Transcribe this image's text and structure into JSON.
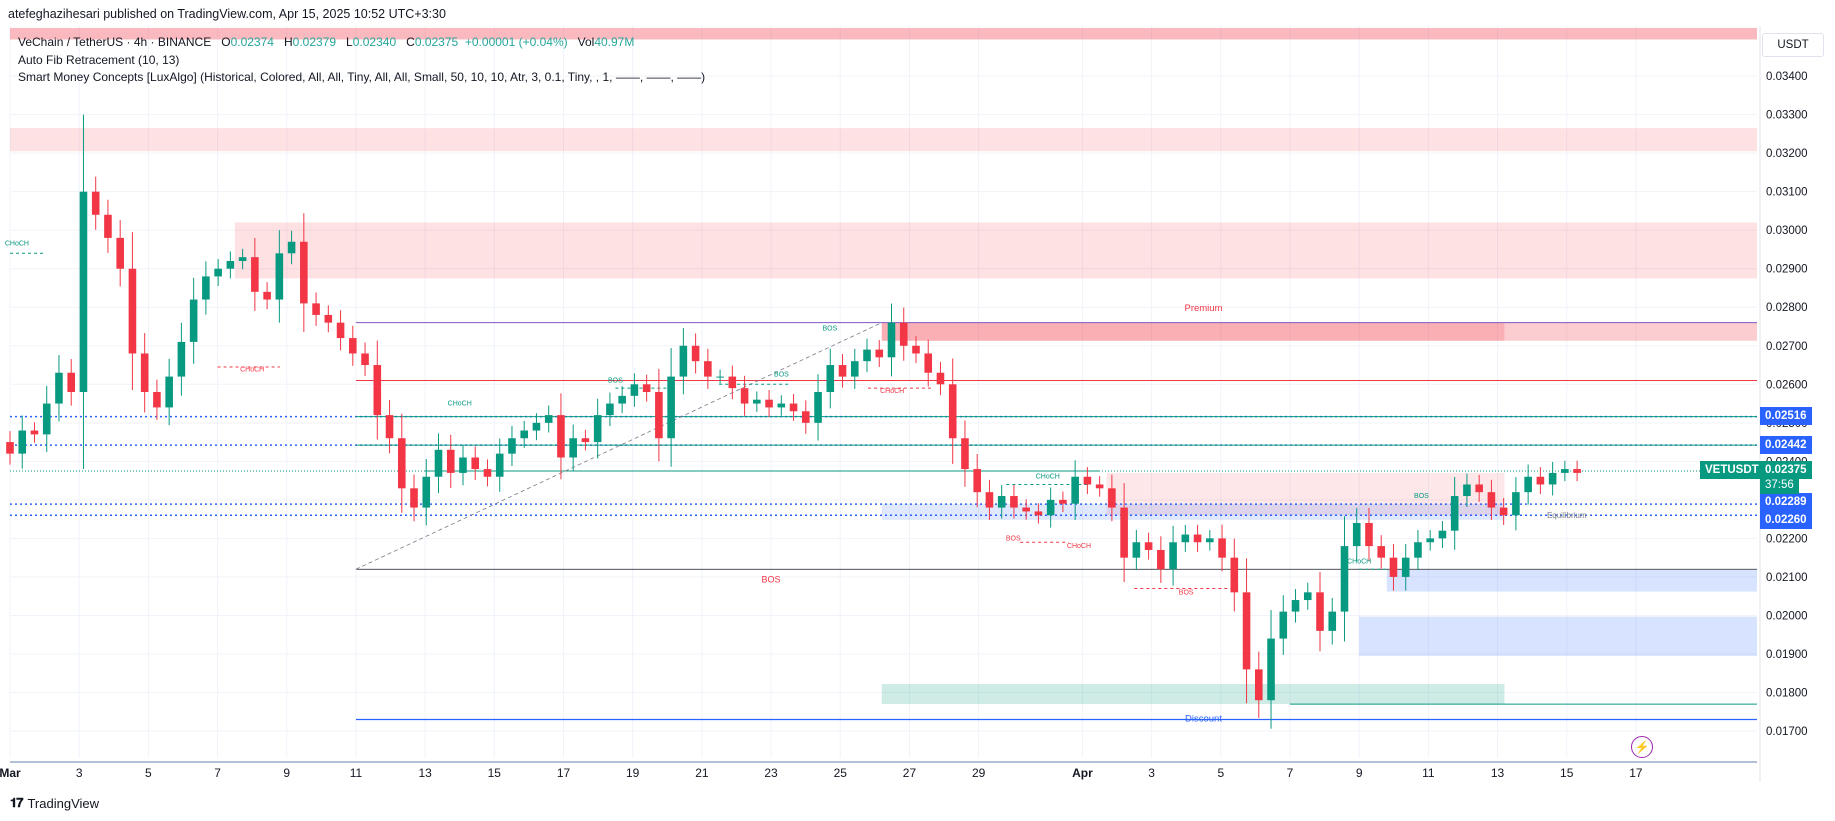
{
  "header": {
    "publisher": "atefeghazihesari published on TradingView.com, Apr 15, 2025 10:52 UTC+3:30"
  },
  "legend": {
    "pair": "VeChain / TetherUS · 4h · BINANCE",
    "o_label": "O",
    "o_value": "0.02374",
    "h_label": "H",
    "h_value": "0.02379",
    "l_label": "L",
    "l_value": "0.02340",
    "c_label": "C",
    "c_value": "0.02375",
    "change": "+0.00001 (+0.04%)",
    "vol_label": "Vol",
    "vol_value": "40.97M",
    "indicator_1": "Auto Fib Retracement (10, 13)",
    "indicator_2": "Smart Money Concepts [LuxAlgo] (Historical, Colored, All, All, Tiny, All, All, Small, 50, 10, 10, Atr, 3, 0.1, Tiny, , 1, ——, ——, ——)"
  },
  "price_axis": {
    "currency": "USDT",
    "symbol": "VETUSDT",
    "last_price": "0.02375",
    "countdown": "37:56",
    "levels": [
      "0.02516",
      "0.02442",
      "0.02289",
      "0.02260"
    ],
    "colors": {
      "up": "#089981",
      "down": "#f23645",
      "blue": "#2962ff",
      "premium": "#f23645"
    }
  },
  "annotations": {
    "premium": "Premium",
    "discount": "Discount",
    "equilibrium": "Equilibrium",
    "bos": "BOS",
    "choch": "CHoCH"
  },
  "footer": {
    "brand": "TradingView"
  },
  "chart_data": {
    "type": "candlestick",
    "title": "VeChain / TetherUS · 4h · BINANCE",
    "ylim": [
      0.0163,
      0.0353
    ],
    "y_ticks": [
      "0.03400",
      "0.03300",
      "0.03200",
      "0.03100",
      "0.03000",
      "0.02900",
      "0.02800",
      "0.02700",
      "0.02600",
      "0.02500",
      "0.02400",
      "0.02300",
      "0.02200",
      "0.02100",
      "0.02000",
      "0.01900",
      "0.01800",
      "0.01700"
    ],
    "y_tick_values": [
      0.034,
      0.033,
      0.032,
      0.031,
      0.03,
      0.029,
      0.028,
      0.027,
      0.026,
      0.025,
      0.024,
      0.023,
      0.022,
      0.021,
      0.02,
      0.019,
      0.018,
      0.017
    ],
    "x_ticks": [
      "Mar",
      "3",
      "5",
      "7",
      "9",
      "11",
      "13",
      "15",
      "17",
      "19",
      "21",
      "23",
      "25",
      "27",
      "29",
      "Apr",
      "3",
      "5",
      "7",
      "9",
      "11",
      "13",
      "15",
      "17"
    ],
    "x_tick_days": [
      1,
      3,
      5,
      7,
      9,
      11,
      13,
      15,
      17,
      19,
      21,
      23,
      25,
      27,
      29,
      32,
      34,
      36,
      38,
      40,
      42,
      44,
      46,
      48
    ],
    "closes": [
      0.0242,
      0.0248,
      0.0247,
      0.0255,
      0.0263,
      0.0258,
      0.031,
      0.0304,
      0.0298,
      0.029,
      0.0268,
      0.0258,
      0.0254,
      0.0262,
      0.0271,
      0.0282,
      0.0288,
      0.029,
      0.0292,
      0.0293,
      0.0284,
      0.0282,
      0.0294,
      0.0297,
      0.0281,
      0.0278,
      0.0276,
      0.0272,
      0.0268,
      0.0265,
      0.0252,
      0.0246,
      0.0233,
      0.0228,
      0.0236,
      0.0243,
      0.0237,
      0.0241,
      0.0238,
      0.0236,
      0.0242,
      0.0246,
      0.0248,
      0.025,
      0.0252,
      0.0241,
      0.0246,
      0.0245,
      0.0252,
      0.0255,
      0.0257,
      0.026,
      0.0258,
      0.0246,
      0.0262,
      0.027,
      0.0266,
      0.0262,
      0.0262,
      0.0259,
      0.0255,
      0.0256,
      0.0254,
      0.0255,
      0.0253,
      0.025,
      0.0258,
      0.0265,
      0.0262,
      0.0266,
      0.0269,
      0.0267,
      0.0276,
      0.027,
      0.0268,
      0.0263,
      0.026,
      0.0246,
      0.0238,
      0.0232,
      0.0228,
      0.0231,
      0.0228,
      0.0227,
      0.0226,
      0.023,
      0.0229,
      0.0236,
      0.0234,
      0.0233,
      0.0228,
      0.0215,
      0.0219,
      0.0217,
      0.0212,
      0.0219,
      0.0221,
      0.0219,
      0.022,
      0.0215,
      0.0206,
      0.0186,
      0.0178,
      0.0194,
      0.0201,
      0.0204,
      0.0206,
      0.0196,
      0.0201,
      0.0218,
      0.0224,
      0.0218,
      0.0215,
      0.021,
      0.0215,
      0.0219,
      0.022,
      0.0222,
      0.0231,
      0.0234,
      0.0232,
      0.0228,
      0.0226,
      0.0232,
      0.0236,
      0.0234,
      0.0237,
      0.0238,
      0.0237
    ],
    "x_range_days": [
      1,
      49
    ],
    "series": [
      {
        "name": "VETUSDT"
      }
    ]
  }
}
